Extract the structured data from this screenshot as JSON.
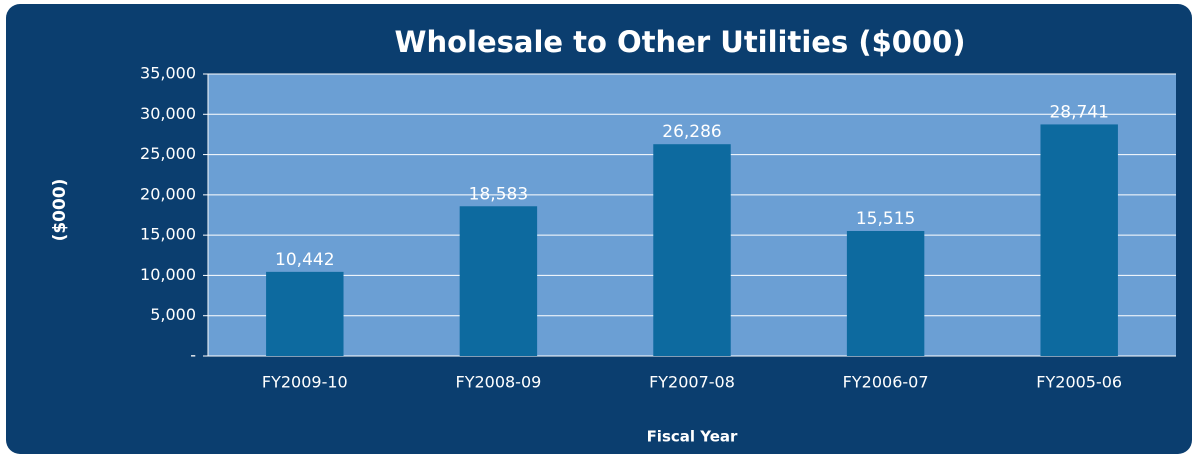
{
  "chart_data": {
    "type": "bar",
    "title": "Wholesale to Other Utilities ($000)",
    "x_label": "Fiscal Year",
    "y_label": "($000)",
    "categories": [
      "FY2009-10",
      "FY2008-09",
      "FY2007-08",
      "FY2006-07",
      "FY2005-06"
    ],
    "values": [
      10442,
      18583,
      26286,
      15515,
      28741
    ],
    "value_labels": [
      "10,442",
      "18,583",
      "26,286",
      "15,515",
      "28,741"
    ],
    "color": "#0d6a9f",
    "ylim": [
      0,
      35000
    ],
    "yticks": [
      {
        "value": 0,
        "label": "-"
      },
      {
        "value": 5000,
        "label": "5,000"
      },
      {
        "value": 10000,
        "label": "10,000"
      },
      {
        "value": 15000,
        "label": "15,000"
      },
      {
        "value": 20000,
        "label": "20,000"
      },
      {
        "value": 25000,
        "label": "25,000"
      },
      {
        "value": 30000,
        "label": "30,000"
      },
      {
        "value": 35000,
        "label": "35,000"
      }
    ],
    "grid": true
  }
}
